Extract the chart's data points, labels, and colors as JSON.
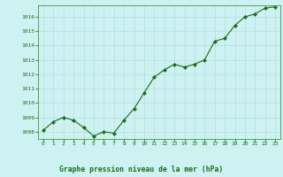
{
  "x": [
    0,
    1,
    2,
    3,
    4,
    5,
    6,
    7,
    8,
    9,
    10,
    11,
    12,
    13,
    14,
    15,
    16,
    17,
    18,
    19,
    20,
    21,
    22,
    23
  ],
  "y": [
    1008.1,
    1008.7,
    1009.0,
    1008.8,
    1008.3,
    1007.7,
    1008.0,
    1007.9,
    1008.8,
    1009.6,
    1010.7,
    1011.8,
    1012.3,
    1012.7,
    1012.5,
    1012.7,
    1013.0,
    1014.3,
    1014.5,
    1015.4,
    1016.0,
    1016.2,
    1016.6,
    1016.7
  ],
  "line_color": "#1a6b1a",
  "marker_color": "#1a6b1a",
  "bg_color": "#cef2f2",
  "grid_color": "#b0dede",
  "tick_color": "#1a6b1a",
  "xlabel": "Graphe pression niveau de la mer (hPa)",
  "xlabel_color": "#1a6b1a",
  "ylim": [
    1007.5,
    1016.8
  ],
  "yticks": [
    1008,
    1009,
    1010,
    1011,
    1012,
    1013,
    1014,
    1015,
    1016
  ],
  "xticks": [
    0,
    1,
    2,
    3,
    4,
    5,
    6,
    7,
    8,
    9,
    10,
    11,
    12,
    13,
    14,
    15,
    16,
    17,
    18,
    19,
    20,
    21,
    22,
    23
  ],
  "spine_color": "#3a9a3a"
}
